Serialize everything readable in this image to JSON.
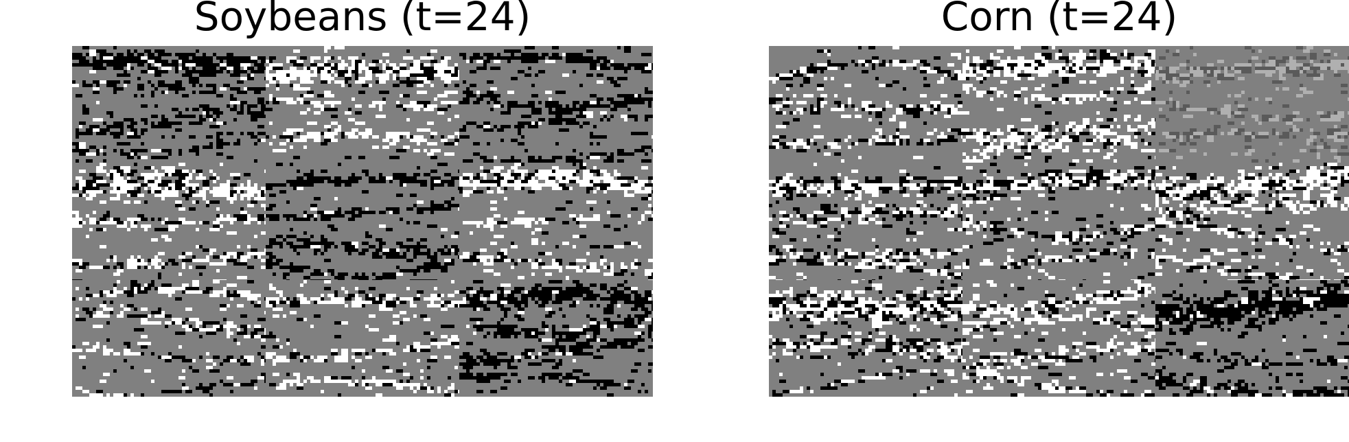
{
  "panels": [
    {
      "title": "Soybeans (t=24)",
      "grid": {
        "rows": 3,
        "cols": 3
      },
      "tiles": [
        {
          "row": 0,
          "col": 0,
          "tone": "black",
          "seed": 11
        },
        {
          "row": 0,
          "col": 1,
          "tone": "white",
          "seed": 12
        },
        {
          "row": 0,
          "col": 2,
          "tone": "black",
          "seed": 13
        },
        {
          "row": 1,
          "col": 0,
          "tone": "white",
          "seed": 14
        },
        {
          "row": 1,
          "col": 1,
          "tone": "black",
          "seed": 15
        },
        {
          "row": 1,
          "col": 2,
          "tone": "white",
          "seed": 16
        },
        {
          "row": 2,
          "col": 0,
          "tone": "mixed",
          "seed": 17
        },
        {
          "row": 2,
          "col": 1,
          "tone": "white",
          "seed": 18
        },
        {
          "row": 2,
          "col": 2,
          "tone": "black",
          "seed": 19
        }
      ]
    },
    {
      "title": "Corn (t=24)",
      "grid": {
        "rows": 3,
        "cols": 3
      },
      "tiles": [
        {
          "row": 0,
          "col": 0,
          "tone": "mixed",
          "seed": 21
        },
        {
          "row": 0,
          "col": 1,
          "tone": "white",
          "seed": 22
        },
        {
          "row": 0,
          "col": 2,
          "tone": "faint",
          "seed": 23
        },
        {
          "row": 1,
          "col": 0,
          "tone": "mixed",
          "seed": 24
        },
        {
          "row": 1,
          "col": 1,
          "tone": "mixed",
          "seed": 25
        },
        {
          "row": 1,
          "col": 2,
          "tone": "white",
          "seed": 26
        },
        {
          "row": 2,
          "col": 0,
          "tone": "mixed",
          "seed": 27
        },
        {
          "row": 2,
          "col": 1,
          "tone": "white",
          "seed": 28
        },
        {
          "row": 2,
          "col": 2,
          "tone": "black",
          "seed": 29
        }
      ]
    }
  ],
  "colors": {
    "background": "#808080",
    "black": "#000000",
    "white": "#ffffff",
    "dark_gray": "#5a5a5a",
    "light_gray": "#b0b0b0"
  }
}
